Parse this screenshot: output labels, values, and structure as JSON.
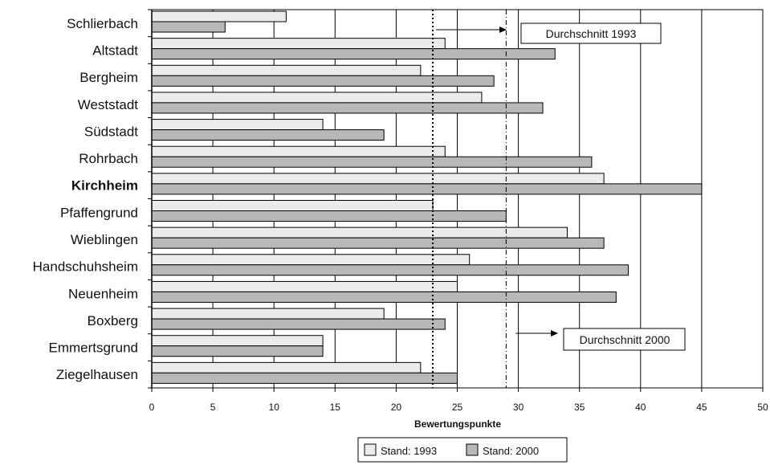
{
  "chart_data": {
    "type": "bar",
    "orientation": "horizontal",
    "categories": [
      "Schlierbach",
      "Altstadt",
      "Bergheim",
      "Weststadt",
      "Südstadt",
      "Rohrbach",
      "Kirchheim",
      "Pfaffengrund",
      "Wieblingen",
      "Handschuhsheim",
      "Neuenheim",
      "Boxberg",
      "Emmertsgrund",
      "Ziegelhausen"
    ],
    "highlighted_category": "Kirchheim",
    "series": [
      {
        "name": "Stand: 1993",
        "color": "#ebebeb",
        "values": [
          11,
          24,
          22,
          27,
          14,
          24,
          37,
          23,
          34,
          26,
          25,
          19,
          14,
          22
        ]
      },
      {
        "name": "Stand: 2000",
        "color": "#b8b8b8",
        "values": [
          6,
          33,
          28,
          32,
          19,
          36,
          45,
          29,
          37,
          39,
          38,
          24,
          14,
          25
        ]
      }
    ],
    "xlabel": "Bewertungspunkte",
    "xlim": [
      0,
      50
    ],
    "xticks": [
      0,
      5,
      10,
      15,
      20,
      25,
      30,
      35,
      40,
      45,
      50
    ],
    "grid": true,
    "legend_position": "bottom",
    "reference_lines": [
      {
        "label": "Durchschnitt 1993",
        "value": 23,
        "style": "dotted"
      },
      {
        "label": "Durchschnitt 2000",
        "value": 29,
        "style": "dash-dot"
      }
    ]
  }
}
